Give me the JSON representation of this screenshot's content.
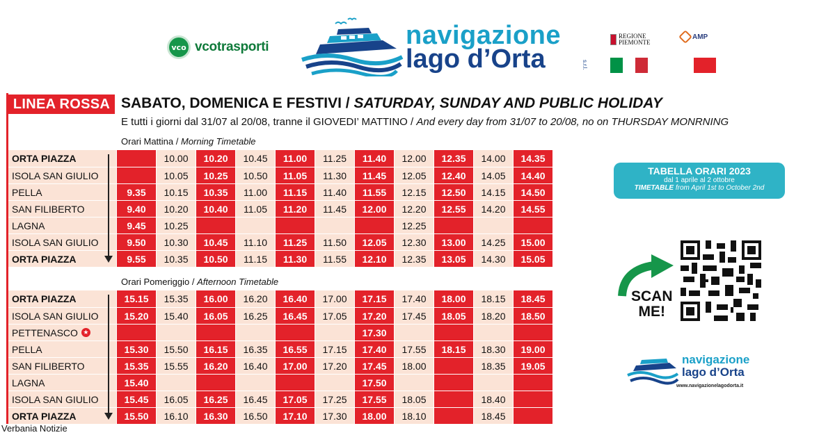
{
  "header": {
    "vco_badge": "vco",
    "vco_name": "vcotrasporti",
    "nav_line1": "navigazione",
    "nav_line2": "lago d’Orta",
    "nav_srl": "s.r.l.",
    "regione_line1": "REGIONE",
    "regione_line2": "PIEMONTE",
    "amp_label": "AMP",
    "colors": {
      "teal": "#1aa0c8",
      "navy": "#18438a",
      "red": "#e3222a",
      "pink": "#fbe3d6",
      "green": "#009246"
    }
  },
  "title": {
    "line": "LINEA ROSSA",
    "days_it": "SABATO, DOMENICA E FESTIVI /",
    "days_en": "SATURDAY, SUNDAY AND PUBLIC HOLIDAY",
    "extra_it": "E tutti i giorni dal 31/07 al 20/08, tranne il GIOVEDI’ MATTINO /",
    "extra_en": "And every day from 31/07 to 20/08, no on THURSDAY MONRNING"
  },
  "morning": {
    "label_it": "Orari Mattina /",
    "label_en": "Morning Timetable",
    "rows": [
      {
        "stop": "ORTA PIAZZA",
        "bold": true,
        "times": [
          "",
          "10.00",
          "10.20",
          "10.45",
          "11.00",
          "11.25",
          "11.40",
          "12.00",
          "12.35",
          "14.00",
          "14.35"
        ]
      },
      {
        "stop": "ISOLA SAN GIULIO",
        "bold": false,
        "times": [
          "",
          "10.05",
          "10.25",
          "10.50",
          "11.05",
          "11.30",
          "11.45",
          "12.05",
          "12.40",
          "14.05",
          "14.40"
        ]
      },
      {
        "stop": "PELLA",
        "bold": false,
        "times": [
          "9.35",
          "10.15",
          "10.35",
          "11.00",
          "11.15",
          "11.40",
          "11.55",
          "12.15",
          "12.50",
          "14.15",
          "14.50"
        ]
      },
      {
        "stop": "SAN FILIBERTO",
        "bold": false,
        "times": [
          "9.40",
          "10.20",
          "10.40",
          "11.05",
          "11.20",
          "11.45",
          "12.00",
          "12.20",
          "12.55",
          "14.20",
          "14.55"
        ]
      },
      {
        "stop": "LAGNA",
        "bold": false,
        "times": [
          "9.45",
          "10.25",
          "",
          "",
          "",
          "",
          "",
          "12.25",
          "",
          "",
          ""
        ]
      },
      {
        "stop": "ISOLA SAN GIULIO",
        "bold": false,
        "times": [
          "9.50",
          "10.30",
          "10.45",
          "11.10",
          "11.25",
          "11.50",
          "12.05",
          "12.30",
          "13.00",
          "14.25",
          "15.00"
        ]
      },
      {
        "stop": "ORTA PIAZZA",
        "bold": true,
        "times": [
          "9.55",
          "10.35",
          "10.50",
          "11.15",
          "11.30",
          "11.55",
          "12.10",
          "12.35",
          "13.05",
          "14.30",
          "15.05"
        ]
      }
    ]
  },
  "afternoon": {
    "label_it": "Orari Pomeriggio /",
    "label_en": "Afternoon Timetable",
    "rows": [
      {
        "stop": "ORTA PIAZZA",
        "bold": true,
        "star": false,
        "times": [
          "15.15",
          "15.35",
          "16.00",
          "16.20",
          "16.40",
          "17.00",
          "17.15",
          "17.40",
          "18.00",
          "18.15",
          "18.45"
        ]
      },
      {
        "stop": "ISOLA SAN GIULIO",
        "bold": false,
        "star": false,
        "times": [
          "15.20",
          "15.40",
          "16.05",
          "16.25",
          "16.45",
          "17.05",
          "17.20",
          "17.45",
          "18.05",
          "18.20",
          "18.50"
        ]
      },
      {
        "stop": "PETTENASCO",
        "bold": false,
        "star": true,
        "times": [
          "",
          "",
          "",
          "",
          "",
          "",
          "17.30",
          "",
          "",
          "",
          ""
        ]
      },
      {
        "stop": "PELLA",
        "bold": false,
        "star": false,
        "times": [
          "15.30",
          "15.50",
          "16.15",
          "16.35",
          "16.55",
          "17.15",
          "17.40",
          "17.55",
          "18.15",
          "18.30",
          "19.00"
        ]
      },
      {
        "stop": "SAN FILIBERTO",
        "bold": false,
        "star": false,
        "times": [
          "15.35",
          "15.55",
          "16.20",
          "16.40",
          "17.00",
          "17.20",
          "17.45",
          "18.00",
          "",
          "18.35",
          "19.05"
        ]
      },
      {
        "stop": "LAGNA",
        "bold": false,
        "star": false,
        "times": [
          "15.40",
          "",
          "",
          "",
          "",
          "",
          "17.50",
          "",
          "",
          "",
          ""
        ]
      },
      {
        "stop": "ISOLA SAN GIULIO",
        "bold": false,
        "star": false,
        "times": [
          "15.45",
          "16.05",
          "16.25",
          "16.45",
          "17.05",
          "17.25",
          "17.55",
          "18.05",
          "",
          "18.40",
          ""
        ]
      },
      {
        "stop": "ORTA PIAZZA",
        "bold": true,
        "star": false,
        "times": [
          "15.50",
          "16.10",
          "16.30",
          "16.50",
          "17.10",
          "17.30",
          "18.00",
          "18.10",
          "",
          "18.45",
          ""
        ]
      }
    ]
  },
  "column_style": [
    "red",
    "light",
    "red",
    "light",
    "red",
    "light",
    "red",
    "light",
    "red",
    "light",
    "red"
  ],
  "info": {
    "tabella_title": "TABELLA ORARI 2023",
    "tabella_it": "dal 1 aprile al 2 ottobre",
    "tabella_en_bold": "TIMETABLE",
    "tabella_en": "from April 1st to October 2nd",
    "scan_1": "SCAN",
    "scan_2": "ME!",
    "logo_line1": "navigazione",
    "logo_line2": "lago d’Orta",
    "website": "www.navigazionelagodorta.it"
  },
  "credit": "Verbania Notizie"
}
